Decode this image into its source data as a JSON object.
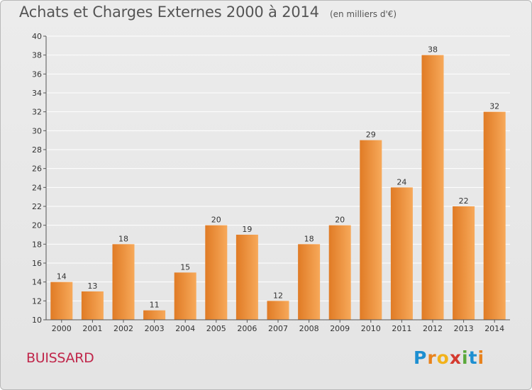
{
  "header": {
    "title": "Achats et Charges Externes 2000 à 2014",
    "subtitle": "(en milliers d'€)"
  },
  "footer": {
    "place": "BUISSARD",
    "logo": {
      "text": "Proxiti",
      "letters": [
        {
          "ch": "P",
          "color": "#1d8fd1"
        },
        {
          "ch": "r",
          "color": "#e8821c"
        },
        {
          "ch": "o",
          "color": "#f2b21b"
        },
        {
          "ch": "x",
          "color": "#d43a2f"
        },
        {
          "ch": "i",
          "color": "#5aa83a"
        },
        {
          "ch": "t",
          "color": "#1d8fd1"
        },
        {
          "ch": "i",
          "color": "#e8821c"
        }
      ]
    }
  },
  "chart_data": {
    "type": "bar",
    "title": "Achats et Charges Externes 2000 à 2014",
    "subtitle": "(en milliers d'€)",
    "categories": [
      "2000",
      "2001",
      "2002",
      "2003",
      "2004",
      "2005",
      "2006",
      "2007",
      "2008",
      "2009",
      "2010",
      "2011",
      "2012",
      "2013",
      "2014"
    ],
    "values": [
      14,
      13,
      18,
      11,
      15,
      20,
      19,
      12,
      18,
      20,
      29,
      24,
      38,
      22,
      32
    ],
    "ylim": [
      10,
      40
    ],
    "yticks": [
      10,
      12,
      14,
      16,
      18,
      20,
      22,
      24,
      26,
      28,
      30,
      32,
      34,
      36,
      38,
      40
    ],
    "grid": true,
    "show_value_labels": true,
    "colors": {
      "bar_light": "#f7a95a",
      "bar_dark": "#e07b25",
      "grid": "#ffffff",
      "axis": "#555555"
    }
  }
}
